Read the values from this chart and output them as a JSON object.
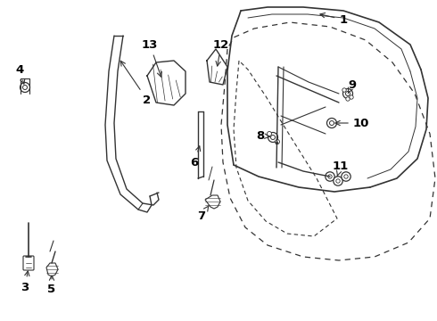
{
  "bg_color": "#ffffff",
  "line_color": "#333333",
  "label_color": "#000000",
  "fontsize": 9.5,
  "lw": 1.0
}
